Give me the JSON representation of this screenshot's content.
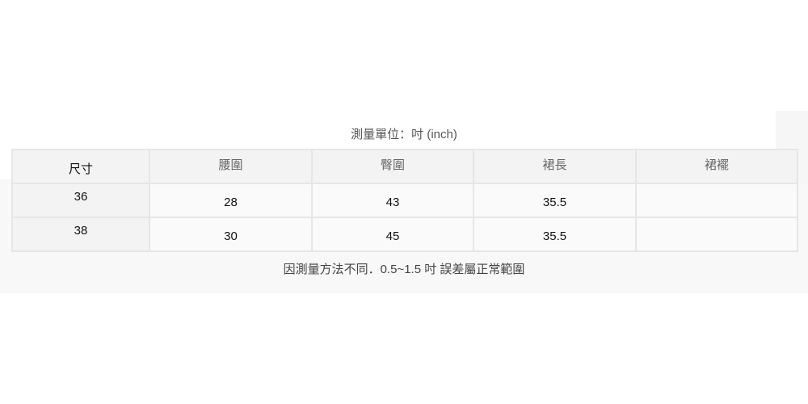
{
  "title": "測量單位：吋 (inch)",
  "table": {
    "headers": [
      "尺寸",
      "腰圍",
      "臀圍",
      "裙長",
      "裙襬"
    ],
    "rows": [
      [
        "36",
        "28",
        "43",
        "35.5",
        ""
      ],
      [
        "38",
        "30",
        "45",
        "35.5",
        ""
      ]
    ]
  },
  "note": "因測量方法不同．0.5~1.5 吋 誤差屬正常範圍"
}
